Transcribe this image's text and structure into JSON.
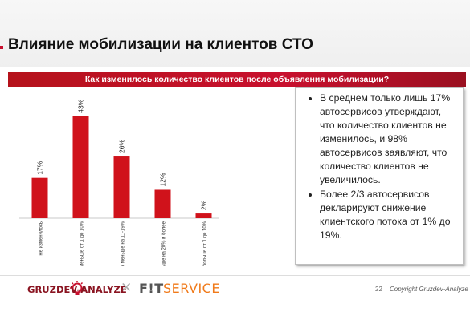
{
  "slide": {
    "title": "Влияние мобилизации на клиентов СТО",
    "banner": "Как изменилось количество клиентов после объявления мобилизации?"
  },
  "notes": [
    "В среднем только лишь 17% автосервисов утверждают, что количество клиентов не изменилось, и 98% автосервисов заявляют, что количество клиентов не увеличилось.",
    "Более 2/3 автосервисов декларируют снижение клиентского потока от 1% до 19%."
  ],
  "footer": {
    "logo_left": "GRUZDEV-ANALYZE",
    "cross": "✕",
    "logo_right_part1": "F!T",
    "logo_right_part2": "SERVICE",
    "page_number": "22",
    "copyright": "Copyright Gruzdev-Analyze"
  },
  "colors": {
    "accent": "#c8102e",
    "bar": "#d0121b",
    "logo_left": "#8a1421",
    "logo_right_accent": "#f07a1a"
  },
  "icons": {
    "logo_left": "lightbulb-icon"
  },
  "chart_data": {
    "type": "bar",
    "categories": [
      "Не изменилось",
      "Стало меньше от 1 до 10%",
      "Стало меньше на 11-19%",
      "Стало меньше на 20% и более",
      "Стало больше от 1 до 10%"
    ],
    "values": [
      17,
      43,
      26,
      12,
      2
    ],
    "data_labels": [
      "17%",
      "43%",
      "26%",
      "12%",
      "2%"
    ],
    "ylim": [
      0,
      50
    ],
    "grid": false,
    "legend": "none"
  }
}
